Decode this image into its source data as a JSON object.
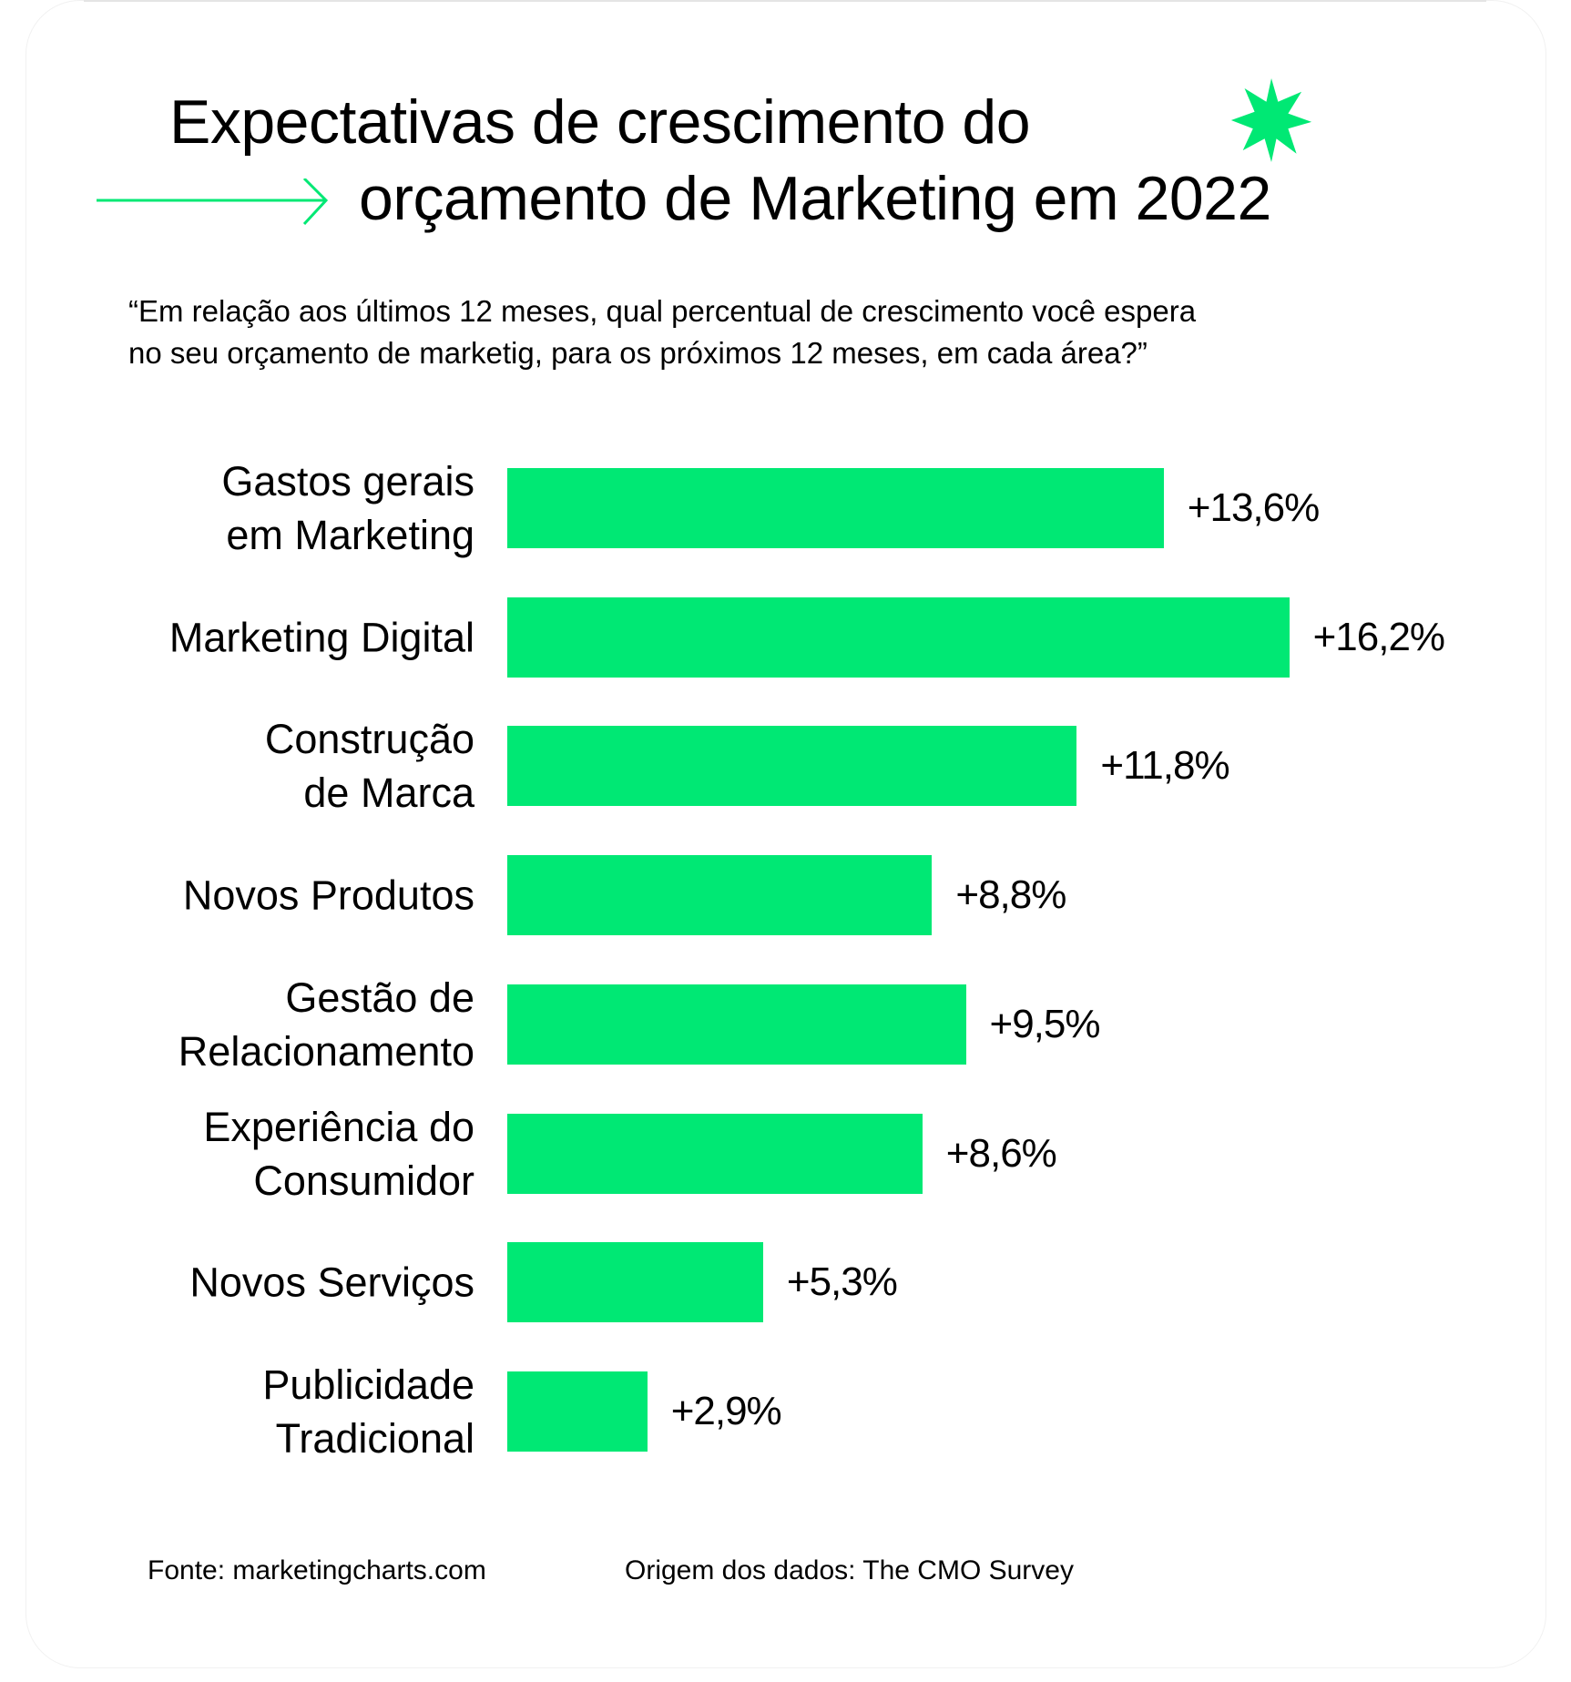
{
  "title_line1": "Expectativas de crescimento do",
  "title_line2": "orçamento de Marketing em 2022",
  "subtitle_line1": "“Em relação aos últimos 12 meses, qual percentual de crescimento você espera",
  "subtitle_line2": "no seu orçamento de marketig, para os próximos 12 meses, em cada área?”",
  "accent_color": "#00e874",
  "icons": {
    "arrow": "arrow-right-icon",
    "star": "star-burst-icon"
  },
  "footer": {
    "source": "Fonte: marketingcharts.com",
    "origin": "Origem dos dados: The CMO Survey"
  },
  "chart_data": {
    "type": "bar",
    "orientation": "horizontal",
    "categories": [
      [
        "Gastos gerais",
        "em Marketing"
      ],
      [
        "Marketing Digital"
      ],
      [
        "Construção",
        "de Marca"
      ],
      [
        "Novos Produtos"
      ],
      [
        "Gestão de",
        "Relacionamento"
      ],
      [
        "Experiência do",
        "Consumidor"
      ],
      [
        "Novos Serviços"
      ],
      [
        "Publicidade",
        "Tradicional"
      ]
    ],
    "values": [
      13.6,
      16.2,
      11.8,
      8.8,
      9.5,
      8.6,
      5.3,
      2.9
    ],
    "data_labels": [
      "+13,6%",
      "+16,2%",
      "+11,8%",
      "+8,8%",
      "+9,5%",
      "+8,6%",
      "+5,3%",
      "+2,9%"
    ],
    "unit": "%",
    "grid": false,
    "bar_color": "#00e874"
  }
}
